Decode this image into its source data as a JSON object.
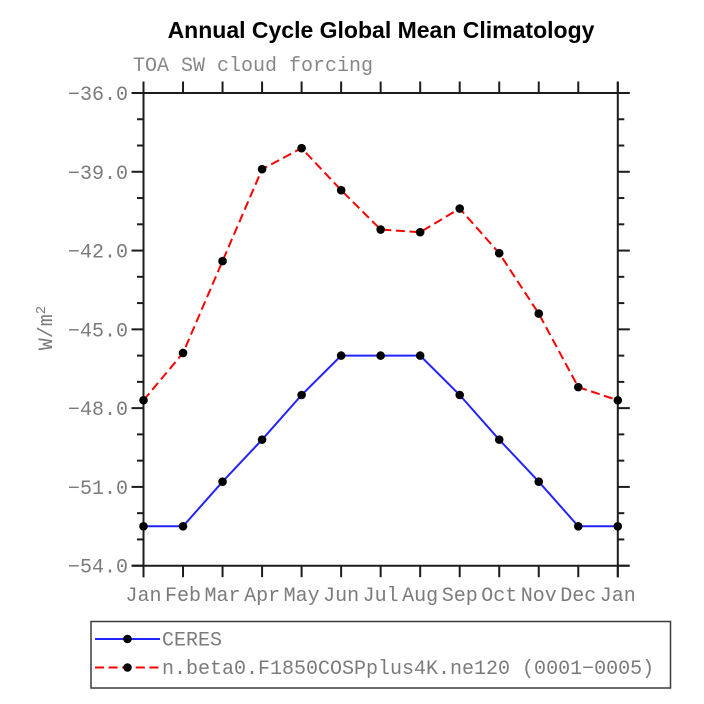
{
  "chart_data": {
    "type": "line",
    "title": "Annual Cycle Global Mean Climatology",
    "subtitle": "TOA SW cloud forcing",
    "ylabel": "W/m²",
    "ylabel_base": "W/m",
    "ylabel_exp": "2",
    "xlabel": "",
    "categories": [
      "Jan",
      "Feb",
      "Mar",
      "Apr",
      "May",
      "Jun",
      "Jul",
      "Aug",
      "Sep",
      "Oct",
      "Nov",
      "Dec",
      "Jan"
    ],
    "ylim": [
      -54.0,
      -36.0
    ],
    "ytick_major": [
      {
        "value": -36.0,
        "label": "−36.0"
      },
      {
        "value": -39.0,
        "label": "−39.0"
      },
      {
        "value": -42.0,
        "label": "−42.0"
      },
      {
        "value": -45.0,
        "label": "−45.0"
      },
      {
        "value": -48.0,
        "label": "−48.0"
      },
      {
        "value": -51.0,
        "label": "−51.0"
      },
      {
        "value": -54.0,
        "label": "−54.0"
      }
    ],
    "ytick_minor_step": 1.0,
    "grid": false,
    "legend_position": "bottom-left",
    "marker": {
      "shape": "circle",
      "color": "#000000"
    },
    "series": [
      {
        "name": "CERES",
        "color": "#2323ff",
        "line_style": "solid",
        "values": [
          -52.5,
          -52.5,
          -50.8,
          -49.2,
          -47.5,
          -46.0,
          -46.0,
          -46.0,
          -47.5,
          -49.2,
          -50.8,
          -52.5,
          -52.5
        ]
      },
      {
        "name": "n.beta0.F1850COSPplus4K.ne120 (0001−0005)",
        "color": "#ff0000",
        "line_style": "dashed",
        "values": [
          -47.7,
          -45.9,
          -42.4,
          -38.9,
          -38.1,
          -39.7,
          -41.2,
          -41.3,
          -40.4,
          -42.1,
          -44.4,
          -47.2,
          -47.7
        ]
      }
    ]
  }
}
